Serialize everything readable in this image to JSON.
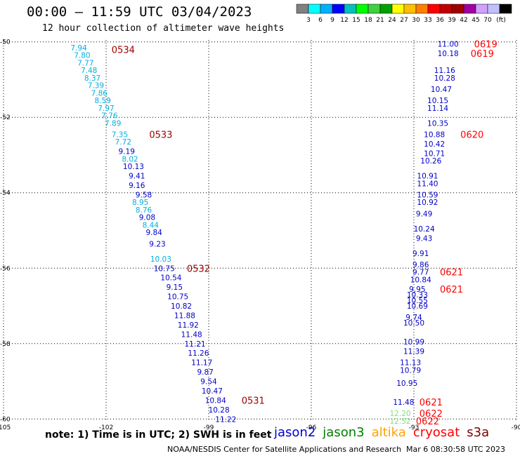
{
  "header": {
    "title": "00:00 — 11:59 UTC 03/04/2023",
    "subtitle": "12 hour collection of altimeter wave heights"
  },
  "legend": {
    "colors": [
      "#808080",
      "#00ffff",
      "#00b0ff",
      "#0000ff",
      "#00c0c0",
      "#00ff00",
      "#40d040",
      "#00a000",
      "#ffff00",
      "#ffc000",
      "#ff8000",
      "#ff0000",
      "#c00000",
      "#a00000",
      "#a000a0",
      "#d0a0ff",
      "#c0c0ff",
      "#000000"
    ],
    "labels": [
      "3",
      "6",
      "9",
      "12",
      "15",
      "18",
      "21",
      "24",
      "27",
      "30",
      "33",
      "36",
      "39",
      "42",
      "45",
      "70"
    ],
    "unit": "(ft)"
  },
  "footer": {
    "note": "note:  1) Time is in UTC;  2) SWH is in feet",
    "satellites": [
      {
        "name": "jason2",
        "color": "#0000d0"
      },
      {
        "name": "jason3",
        "color": "#008000"
      },
      {
        "name": "altika",
        "color": "#ffa500"
      },
      {
        "name": "cryosat",
        "color": "#ff0000"
      },
      {
        "name": "s3a",
        "color": "#800000"
      }
    ],
    "credit": "NOAA/NESDIS Center for Satellite Applications and Research",
    "timestamp": "Mar  6 08:30:58 UTC 2023"
  },
  "chart_data": {
    "type": "scatter",
    "x_ticks": [
      "-105",
      "-102",
      "-99",
      "-96",
      "-93",
      "-90"
    ],
    "y_ticks": [
      "-50",
      "-52",
      "-54",
      "-56",
      "-58",
      "-60"
    ],
    "xlim": [
      -105,
      -90
    ],
    "ylim": [
      -60.05,
      -49.95
    ],
    "grid": true,
    "series": [
      {
        "sat": "track-A",
        "color": "#00b0e0",
        "points": [
          [
            -102.8,
            -50.15,
            "7.94"
          ],
          [
            -102.7,
            -50.35,
            "7.80"
          ],
          [
            -102.6,
            -50.55,
            "7.77"
          ],
          [
            -102.5,
            -50.75,
            "7.48"
          ],
          [
            -102.4,
            -50.95,
            "8.37"
          ],
          [
            -102.3,
            -51.15,
            "7.39"
          ],
          [
            -102.2,
            -51.35,
            "7.86"
          ],
          [
            -102.1,
            -51.55,
            "8.59"
          ],
          [
            -102.0,
            -51.75,
            "7.97"
          ],
          [
            -101.9,
            -51.95,
            "7.76"
          ],
          [
            -101.8,
            -52.15,
            "7.89"
          ],
          [
            -101.6,
            -52.45,
            "7.35"
          ],
          [
            -101.5,
            -52.65,
            "7.72"
          ],
          [
            -101.3,
            -53.1,
            "8.02"
          ],
          [
            -101.0,
            -54.25,
            "8.95"
          ],
          [
            -100.9,
            -54.45,
            "8.76"
          ],
          [
            -100.7,
            -54.85,
            "8.44"
          ],
          [
            -100.4,
            -55.75,
            "10.03"
          ]
        ]
      },
      {
        "sat": "track-B",
        "color": "#0000c8",
        "points": [
          [
            -101.4,
            -52.9,
            "9.19"
          ],
          [
            -101.2,
            -53.3,
            "10.13"
          ],
          [
            -101.1,
            -53.55,
            "9.41"
          ],
          [
            -101.1,
            -53.8,
            "9.16"
          ],
          [
            -100.9,
            -54.05,
            "9.58"
          ],
          [
            -100.8,
            -54.65,
            "9.08"
          ],
          [
            -100.6,
            -55.05,
            "9.84"
          ],
          [
            -100.5,
            -55.35,
            "9.23"
          ],
          [
            -100.3,
            -56.0,
            "10.75"
          ],
          [
            -100.1,
            -56.25,
            "10.54"
          ],
          [
            -100.0,
            -56.5,
            "9.15"
          ],
          [
            -99.9,
            -56.75,
            "10.75"
          ],
          [
            -99.8,
            -57.0,
            "10.82"
          ],
          [
            -99.7,
            -57.25,
            "11.88"
          ],
          [
            -99.6,
            -57.5,
            "11.92"
          ],
          [
            -99.5,
            -57.75,
            "11.48"
          ],
          [
            -99.4,
            -58.0,
            "11.21"
          ],
          [
            -99.3,
            -58.25,
            "11.26"
          ],
          [
            -99.2,
            -58.5,
            "11.17"
          ],
          [
            -99.1,
            -58.75,
            "9.87"
          ],
          [
            -99.0,
            -59.0,
            "9.54"
          ],
          [
            -98.9,
            -59.25,
            "10.47"
          ],
          [
            -98.8,
            -59.5,
            "10.84"
          ],
          [
            -98.7,
            -59.75,
            "10.28"
          ],
          [
            -98.5,
            -60.0,
            "11.22"
          ],
          [
            -92.0,
            -50.05,
            "11.00"
          ],
          [
            -92.0,
            -50.3,
            "10.18"
          ],
          [
            -92.1,
            -50.75,
            "11.16"
          ],
          [
            -92.1,
            -50.95,
            "10.28"
          ],
          [
            -92.2,
            -51.25,
            "10.47"
          ],
          [
            -92.3,
            -51.55,
            "10.15"
          ],
          [
            -92.3,
            -51.75,
            "11.14"
          ],
          [
            -92.3,
            -52.15,
            "10.35"
          ],
          [
            -92.4,
            -52.45,
            "10.88"
          ],
          [
            -92.4,
            -52.7,
            "10.42"
          ],
          [
            -92.4,
            -52.95,
            "10.71"
          ],
          [
            -92.5,
            -53.15,
            "10.26"
          ],
          [
            -92.6,
            -53.55,
            "10.91"
          ],
          [
            -92.6,
            -53.75,
            "11.40"
          ],
          [
            -92.6,
            -54.05,
            "10.59"
          ],
          [
            -92.6,
            -54.25,
            "10.92"
          ],
          [
            -92.7,
            -54.55,
            "9.49"
          ],
          [
            -92.7,
            -54.95,
            "10.24"
          ],
          [
            -92.7,
            -55.2,
            "9.43"
          ],
          [
            -92.8,
            -55.6,
            "9.91"
          ],
          [
            -92.8,
            -55.9,
            "9.86"
          ],
          [
            -92.8,
            -56.1,
            "9.77"
          ],
          [
            -92.8,
            -56.3,
            "10.84"
          ],
          [
            -92.9,
            -56.55,
            "9.95"
          ],
          [
            -92.9,
            -56.7,
            "10.33"
          ],
          [
            -92.9,
            -56.85,
            "10.55"
          ],
          [
            -92.9,
            -57.0,
            "10.69"
          ],
          [
            -93.0,
            -57.3,
            "9.74"
          ],
          [
            -93.0,
            -57.45,
            "10.50"
          ],
          [
            -93.0,
            -57.95,
            "10.99"
          ],
          [
            -93.0,
            -58.2,
            "11.39"
          ],
          [
            -93.1,
            -58.5,
            "11.13"
          ],
          [
            -93.1,
            -58.7,
            "10.79"
          ],
          [
            -93.2,
            -59.05,
            "10.95"
          ],
          [
            -93.3,
            -59.55,
            "11.48"
          ]
        ]
      },
      {
        "sat": "track-C",
        "color": "#80e080",
        "points": [
          [
            -93.4,
            -59.85,
            "12.20"
          ],
          [
            -93.4,
            -60.05,
            "12.52"
          ]
        ]
      }
    ],
    "time_labels": [
      {
        "x": -101.5,
        "y": -50.2,
        "text": "0534",
        "color": "#a00000"
      },
      {
        "x": -100.4,
        "y": -52.45,
        "text": "0533",
        "color": "#a00000"
      },
      {
        "x": -99.3,
        "y": -56.0,
        "text": "0532",
        "color": "#a00000"
      },
      {
        "x": -97.7,
        "y": -59.5,
        "text": "0531",
        "color": "#a00000"
      },
      {
        "x": -90.9,
        "y": -50.05,
        "text": "0619",
        "color": "#ff0000"
      },
      {
        "x": -91.0,
        "y": -50.3,
        "text": "0619",
        "color": "#ff0000"
      },
      {
        "x": -91.3,
        "y": -52.45,
        "text": "0620",
        "color": "#ff0000"
      },
      {
        "x": -91.9,
        "y": -56.1,
        "text": "0621",
        "color": "#ff0000"
      },
      {
        "x": -91.9,
        "y": -56.55,
        "text": "0621",
        "color": "#ff0000"
      },
      {
        "x": -92.5,
        "y": -59.55,
        "text": "0621",
        "color": "#ff0000"
      },
      {
        "x": -92.5,
        "y": -59.85,
        "text": "0622",
        "color": "#ff0000"
      },
      {
        "x": -92.6,
        "y": -60.05,
        "text": "0622",
        "color": "#ff0000"
      }
    ]
  }
}
